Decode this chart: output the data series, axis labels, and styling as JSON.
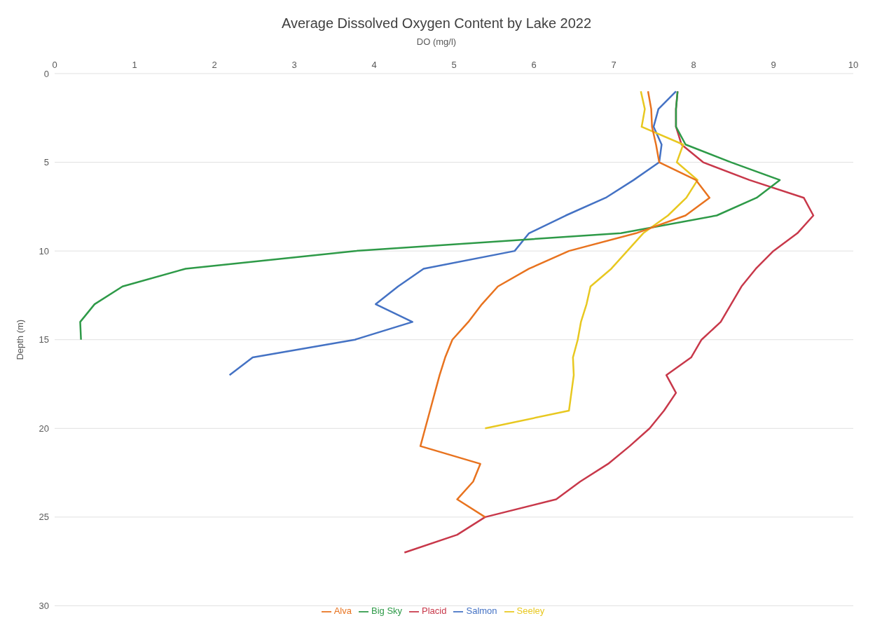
{
  "chart_data": {
    "type": "line",
    "title": "Average Dissolved Oxygen Content by Lake 2022",
    "xlabel": "DO (mg/l)",
    "ylabel": "Depth (m)",
    "xlim": [
      0,
      10
    ],
    "xticks": [
      0,
      1,
      2,
      3,
      4,
      5,
      6,
      7,
      8,
      9,
      10
    ],
    "ylim": [
      30,
      0
    ],
    "yticks": [
      0,
      5,
      10,
      15,
      20,
      25,
      30
    ],
    "grid": "y",
    "legend": "bottom",
    "marker": "none",
    "line_style": "solid",
    "series": [
      {
        "name": "Salmon",
        "color": "#4472c4",
        "x": [
          7.78,
          7.56,
          7.5,
          7.6,
          7.57,
          7.25,
          6.9,
          6.4,
          5.94,
          5.76,
          4.62,
          4.3,
          4.02,
          4.48,
          3.76,
          2.48,
          2.19
        ],
        "values": [
          1,
          2,
          3,
          4,
          5,
          6,
          7,
          8,
          9,
          10,
          11,
          12,
          13,
          14,
          15,
          16,
          17
        ]
      },
      {
        "name": "Placid",
        "color": "#c8384a",
        "x": [
          7.8,
          7.78,
          7.78,
          7.85,
          8.12,
          8.7,
          9.38,
          9.5,
          9.3,
          9.0,
          8.78,
          8.6,
          8.47,
          8.34,
          8.1,
          7.97,
          7.66,
          7.78,
          7.63,
          7.45,
          7.2,
          6.93,
          6.58,
          6.28,
          5.39,
          5.04,
          4.38
        ],
        "values": [
          1,
          2,
          3,
          4,
          5,
          6,
          7,
          8,
          9,
          10,
          11,
          12,
          13,
          14,
          15,
          16,
          17,
          18,
          19,
          20,
          21,
          22,
          23,
          24,
          25,
          26,
          27
        ]
      },
      {
        "name": "Seeley",
        "color": "#e8c820",
        "x": [
          7.34,
          7.39,
          7.35,
          7.87,
          7.79,
          8.05,
          7.91,
          7.68,
          7.37,
          7.17,
          6.97,
          6.71,
          6.66,
          6.59,
          6.55,
          6.49,
          6.5,
          6.47,
          6.44,
          5.39
        ],
        "values": [
          1,
          2,
          3,
          4,
          5,
          6,
          7,
          8,
          9,
          10,
          11,
          12,
          13,
          14,
          15,
          16,
          17,
          18,
          19,
          20
        ]
      },
      {
        "name": "Big Sky",
        "color": "#2e9a48",
        "x": [
          7.8,
          7.78,
          7.78,
          7.9,
          8.47,
          9.08,
          8.79,
          8.29,
          7.09,
          3.76,
          1.64,
          0.85,
          0.5,
          0.32,
          0.33
        ],
        "values": [
          1,
          2,
          3,
          4,
          5,
          6,
          7,
          8,
          9,
          10,
          11,
          12,
          13,
          14,
          15
        ]
      },
      {
        "name": "Alva",
        "color": "#e8731f",
        "x": [
          7.43,
          7.47,
          7.48,
          7.53,
          7.57,
          8.03,
          8.2,
          7.9,
          7.28,
          6.44,
          5.94,
          5.55,
          5.35,
          5.18,
          4.98,
          4.89,
          4.82,
          4.76,
          4.7,
          4.64,
          4.58,
          5.33,
          5.24,
          5.04,
          5.39
        ],
        "values": [
          1,
          2,
          3,
          4,
          5,
          6,
          7,
          8,
          9,
          10,
          11,
          12,
          13,
          14,
          15,
          16,
          17,
          18,
          19,
          20,
          21,
          22,
          23,
          24,
          25
        ]
      }
    ]
  }
}
